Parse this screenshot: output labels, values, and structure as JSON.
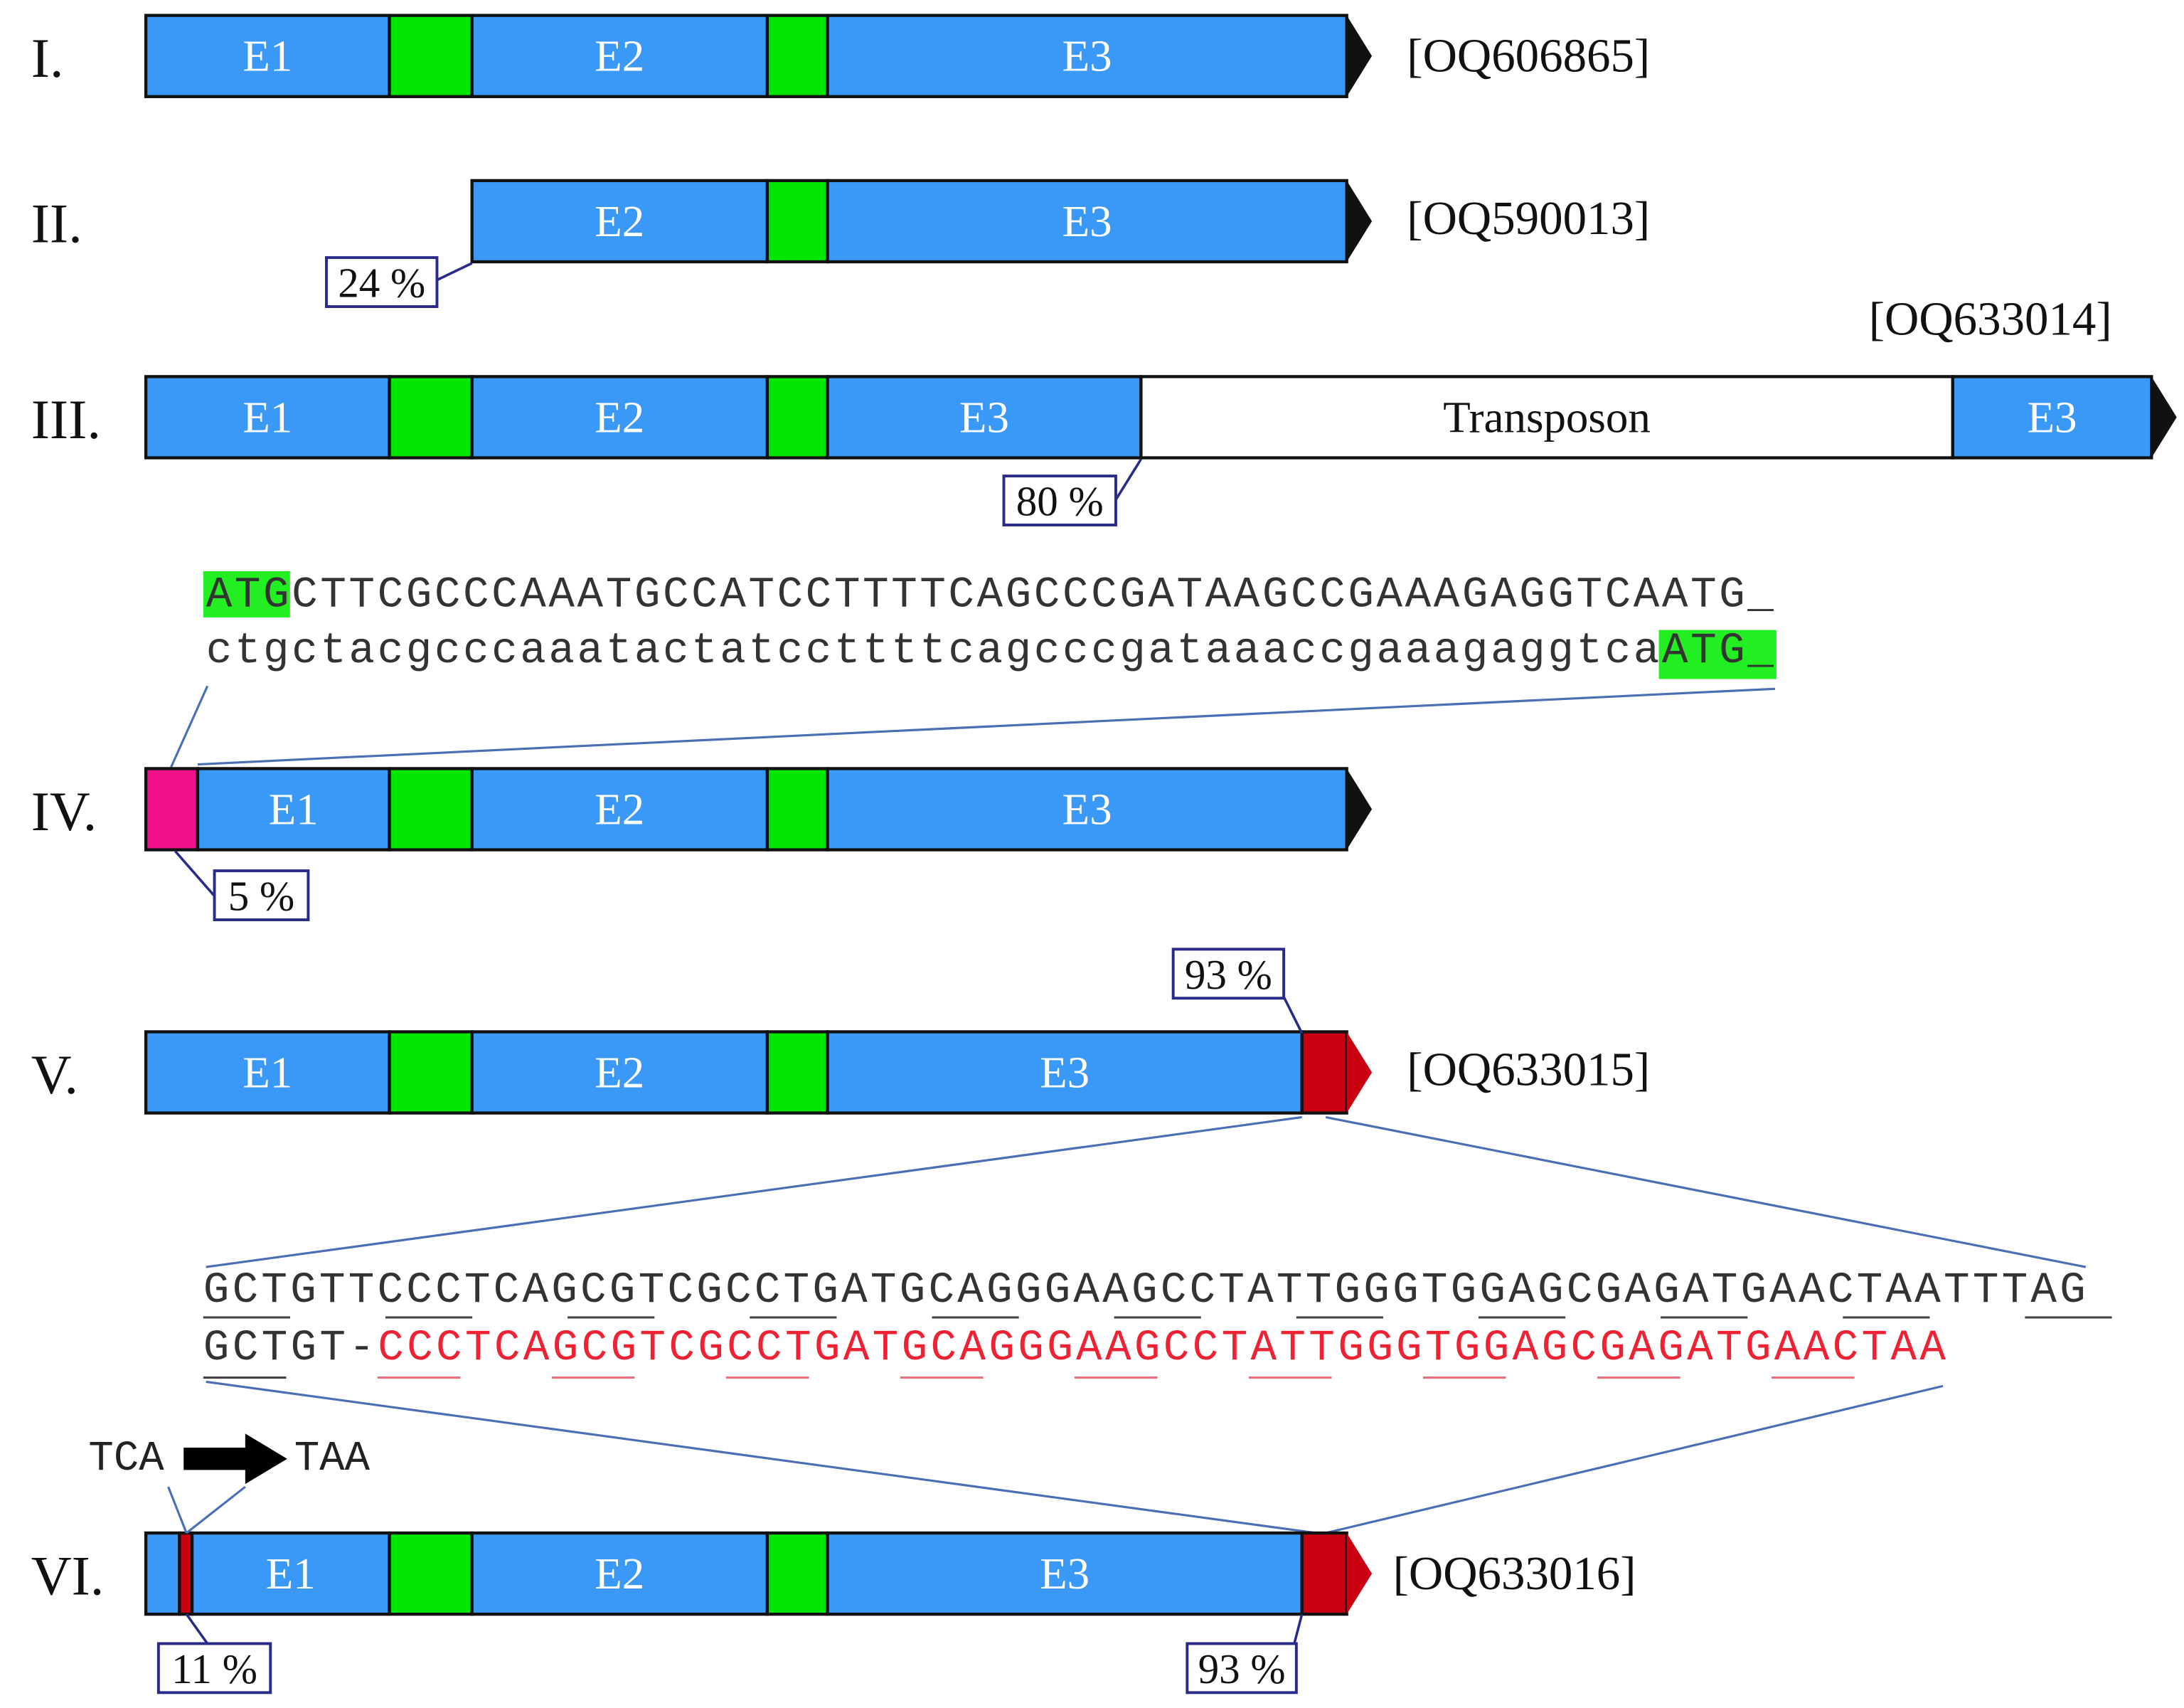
{
  "colors": {
    "exon": "#3a98f7",
    "intron": "#00e600",
    "uORF": "#f0108a",
    "stop_ext": "#c80010",
    "connector": "#4a6fb5",
    "callout": "#2a2a8a",
    "highlight": "#22ee22",
    "red_seq": "#ee2233"
  },
  "rows": [
    {
      "label": "I.",
      "accession": "[OQ606865]"
    },
    {
      "label": "II.",
      "accession": "[OQ590013]",
      "callouts": [
        "24 %"
      ]
    },
    {
      "label": "III.",
      "accession": "[OQ633014]",
      "callouts": [
        "80 %"
      ],
      "transposon": "Transposon"
    },
    {
      "label": "IV.",
      "callouts": [
        "5 %"
      ]
    },
    {
      "label": "V.",
      "accession": "[OQ633015]",
      "callouts": [
        "93 %"
      ]
    },
    {
      "label": "VI.",
      "accession": "[OQ633016]",
      "callouts": [
        "11 %",
        "93 %"
      ]
    }
  ],
  "exons": {
    "e1": "E1",
    "e2": "E2",
    "e3": "E3"
  },
  "atg_sequence": {
    "line1": {
      "highlight": "ATG",
      "rest": "CTTCGCCCAAATGCCATCCTTTTCAGCCCGATAAGCCGAAAGAGGTCAATG_"
    },
    "line2": {
      "rest": "ctgctacgcccaaatactatccttttcagcccgataaaccgaaagaggtca",
      "highlight": "ATG_"
    }
  },
  "stop_sequence": {
    "line1": "GCTGTTCCCTCAGCGTCGCCTGATGCAGGGAAGCCTATTGGGTGGAGCGAGATGAACTAATTTAG",
    "line2_prefix": "GCTGT-",
    "line2_red": "CCCTCAGCGTCGCCTGATGCAGGGAAGCCTATTGGGTGGAGCGAGATGAACTAA"
  },
  "mutation": {
    "from": "TCA",
    "to": "TAA",
    "arrow_icon": "right-arrow-icon"
  }
}
